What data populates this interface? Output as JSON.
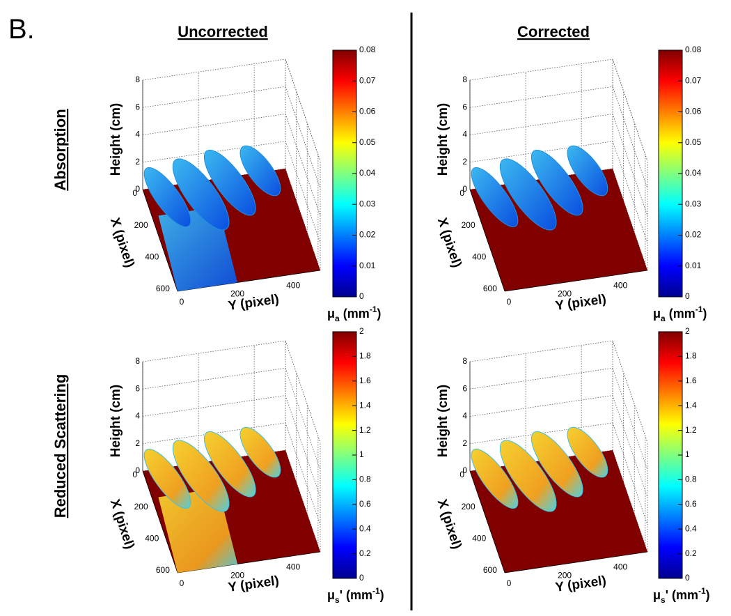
{
  "panel_label": "B.",
  "columns": [
    "Uncorrected",
    "Corrected"
  ],
  "rows": [
    "Absorption",
    "Reduced Scattering"
  ],
  "panels": [
    {
      "z_label": "Height (cm)",
      "x_label": "X (pixel)",
      "y_label": "Y (pixel)",
      "zlim": [
        0,
        8
      ],
      "zticks": [
        0,
        2,
        4,
        6,
        8
      ],
      "xlim": [
        0,
        640
      ],
      "xticks": [
        0,
        200,
        400,
        600
      ],
      "ylim": [
        0,
        512
      ],
      "yticks": [
        0,
        200,
        400
      ],
      "colorbar": {
        "lim": [
          0,
          0.08
        ],
        "ticks": [
          0,
          0.01,
          0.02,
          0.03,
          0.04,
          0.05,
          0.06,
          0.07,
          0.08
        ],
        "label": {
          "symbol": "μ",
          "subscript": "a",
          "unit": " (mm",
          "superscript": "-1",
          "close": ")"
        }
      }
    },
    {
      "z_label": "Height (cm)",
      "x_label": "X (pixel)",
      "y_label": "Y (pixel)",
      "zlim": [
        0,
        8
      ],
      "zticks": [
        0,
        2,
        4,
        6,
        8
      ],
      "xlim": [
        0,
        640
      ],
      "xticks": [
        0,
        200,
        400,
        600
      ],
      "ylim": [
        0,
        512
      ],
      "yticks": [
        0,
        200,
        400
      ],
      "colorbar": {
        "lim": [
          0,
          0.08
        ],
        "ticks": [
          0,
          0.01,
          0.02,
          0.03,
          0.04,
          0.05,
          0.06,
          0.07,
          0.08
        ],
        "label": {
          "symbol": "μ",
          "subscript": "a",
          "unit": " (mm",
          "superscript": "-1",
          "close": ")"
        }
      }
    },
    {
      "z_label": "Height (cm)",
      "x_label": "X (pixel)",
      "y_label": "Y (pixel)",
      "zlim": [
        0,
        8
      ],
      "zticks": [
        0,
        2,
        4,
        6,
        8
      ],
      "xlim": [
        0,
        640
      ],
      "xticks": [
        0,
        200,
        400,
        600
      ],
      "ylim": [
        0,
        512
      ],
      "yticks": [
        0,
        200,
        400
      ],
      "colorbar": {
        "lim": [
          0,
          2
        ],
        "ticks": [
          0,
          0.2,
          0.4,
          0.6,
          0.8,
          1,
          1.2,
          1.4,
          1.6,
          1.8,
          2
        ],
        "label": {
          "symbol": "μ",
          "subscript": "s",
          "unit": "' (mm",
          "superscript": "-1",
          "close": ")"
        }
      }
    },
    {
      "z_label": "Height (cm)",
      "x_label": "X (pixel)",
      "y_label": "Y (pixel)",
      "zlim": [
        0,
        8
      ],
      "zticks": [
        0,
        2,
        4,
        6,
        8
      ],
      "xlim": [
        0,
        640
      ],
      "xticks": [
        0,
        200,
        400,
        600
      ],
      "ylim": [
        0,
        512
      ],
      "yticks": [
        0,
        200,
        400
      ],
      "colorbar": {
        "lim": [
          0,
          2
        ],
        "ticks": [
          0,
          0.2,
          0.4,
          0.6,
          0.8,
          1,
          1.2,
          1.4,
          1.6,
          1.8,
          2
        ],
        "label": {
          "symbol": "μ",
          "subscript": "s",
          "unit": "' (mm",
          "superscript": "-1",
          "close": ")"
        }
      }
    }
  ]
}
